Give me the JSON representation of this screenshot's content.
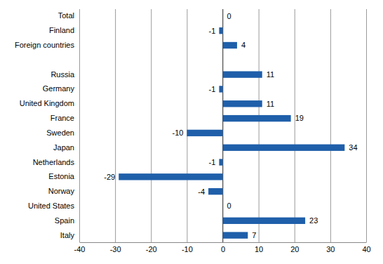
{
  "chart_data": {
    "type": "bar",
    "orientation": "horizontal",
    "categories": [
      "Total",
      "Finland",
      "Foreign countries",
      null,
      "Russia",
      "Germany",
      "United Kingdom",
      "France",
      "Sweden",
      "Japan",
      "Netherlands",
      "Estonia",
      "Norway",
      "United States",
      "Spain",
      "Italy"
    ],
    "values": [
      0,
      -1,
      4,
      null,
      11,
      -1,
      11,
      19,
      -10,
      34,
      -1,
      -29,
      -4,
      0,
      23,
      7
    ],
    "color": "#1f5faa",
    "xlim": [
      -40,
      40
    ],
    "xticks": [
      -40,
      -30,
      -20,
      -10,
      0,
      10,
      20,
      30,
      40
    ],
    "grid": true,
    "data_labels": true
  }
}
